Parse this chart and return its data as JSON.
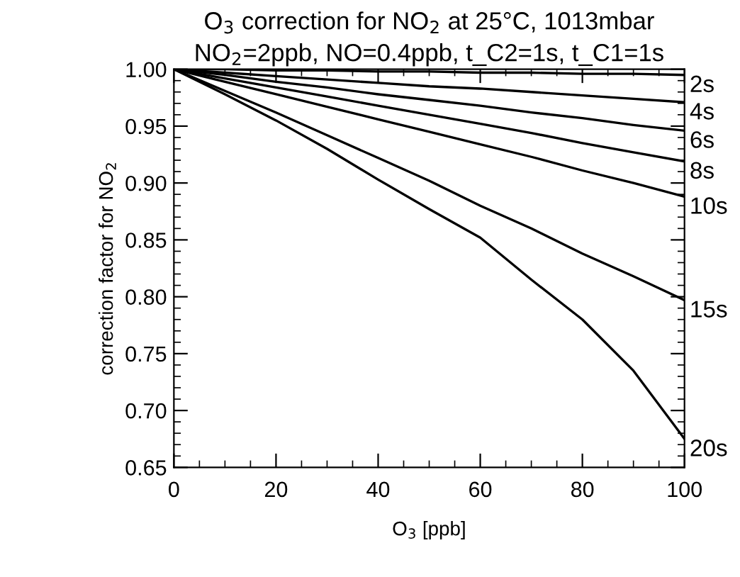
{
  "chart_data": {
    "type": "line",
    "title": "O$_{3}$ correction for NO$_{2}$ at 25°C, 1013mbar",
    "subtitle": "NO$_{2}$=2ppb, NO=0.4ppb, t_C2=1s, t_C1=1s",
    "xlabel": "O$_{3}$ [ppb]",
    "ylabel": "correction factor for NO$_{2}$",
    "x": [
      0,
      10,
      20,
      30,
      40,
      50,
      60,
      70,
      80,
      90,
      100
    ],
    "series": [
      {
        "name": "2s",
        "color": "#000000",
        "values": [
          1.0,
          1.0,
          0.999,
          0.999,
          0.998,
          0.998,
          0.997,
          0.997,
          0.996,
          0.996,
          0.995
        ]
      },
      {
        "name": "4s",
        "color": "#000000",
        "values": [
          1.0,
          0.997,
          0.994,
          0.991,
          0.988,
          0.985,
          0.983,
          0.98,
          0.977,
          0.974,
          0.971
        ]
      },
      {
        "name": "6s",
        "color": "#000000",
        "values": [
          1.0,
          0.995,
          0.989,
          0.984,
          0.978,
          0.973,
          0.968,
          0.962,
          0.957,
          0.951,
          0.946
        ]
      },
      {
        "name": "8s",
        "color": "#000000",
        "values": [
          1.0,
          0.992,
          0.984,
          0.976,
          0.968,
          0.96,
          0.952,
          0.944,
          0.935,
          0.927,
          0.919
        ]
      },
      {
        "name": "10s",
        "color": "#000000",
        "values": [
          1.0,
          0.989,
          0.978,
          0.967,
          0.956,
          0.945,
          0.934,
          0.923,
          0.911,
          0.9,
          0.888
        ]
      },
      {
        "name": "15s",
        "color": "#000000",
        "values": [
          1.0,
          0.981,
          0.962,
          0.942,
          0.922,
          0.902,
          0.88,
          0.86,
          0.838,
          0.818,
          0.797
        ]
      },
      {
        "name": "20s",
        "color": "#000000",
        "values": [
          1.0,
          0.978,
          0.955,
          0.93,
          0.903,
          0.877,
          0.852,
          0.815,
          0.78,
          0.735,
          0.675
        ]
      }
    ],
    "xlim": [
      0,
      100
    ],
    "xticks": [
      0,
      20,
      40,
      60,
      80,
      100
    ],
    "ylim": [
      0.65,
      1.0
    ],
    "yticks": [
      {
        "value": 0.65,
        "label": "0.65"
      },
      {
        "value": 0.7,
        "label": "0.70"
      },
      {
        "value": 0.75,
        "label": "0.75"
      },
      {
        "value": 0.8,
        "label": "0.80"
      },
      {
        "value": 0.85,
        "label": "0.85"
      },
      {
        "value": 0.9,
        "label": "0.90"
      },
      {
        "value": 0.95,
        "label": "0.95"
      },
      {
        "value": 1.0,
        "label": "1.00"
      }
    ],
    "grid": false,
    "legend": "right",
    "marker": "none",
    "line_style": "solid"
  }
}
